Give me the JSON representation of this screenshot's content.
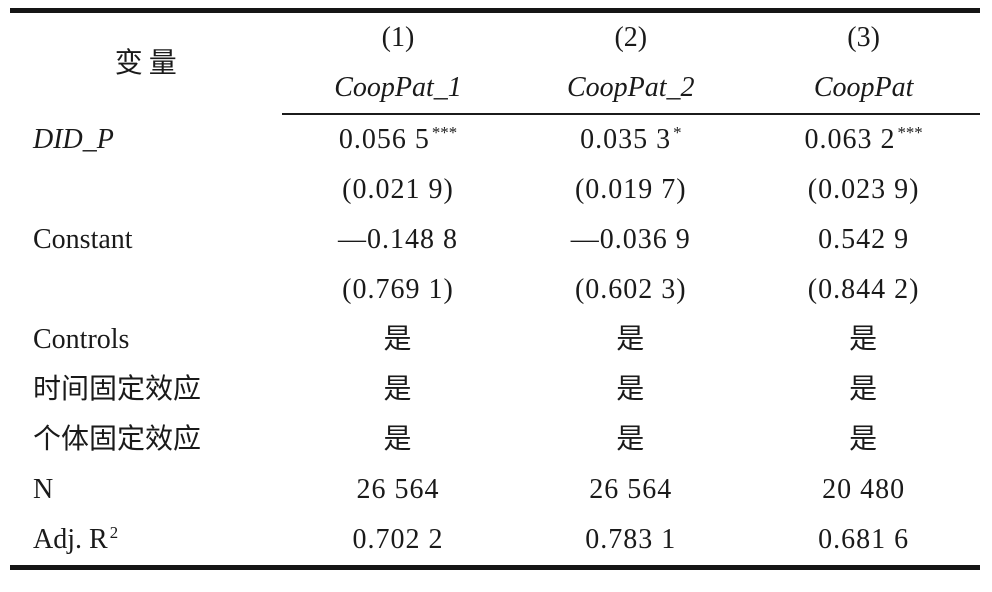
{
  "meta": {
    "background_color": "#ffffff",
    "text_color": "#1a1a1a",
    "rule_color": "#151515"
  },
  "table": {
    "header": {
      "variable_label": "变量",
      "columns": [
        {
          "number": "(1)",
          "model": "CoopPat_1"
        },
        {
          "number": "(2)",
          "model": "CoopPat_2"
        },
        {
          "number": "(3)",
          "model": "CoopPat"
        }
      ]
    },
    "rows": [
      {
        "label": "DID_P",
        "italic": true,
        "cells": [
          {
            "text": "0.056 5",
            "sup": "***"
          },
          {
            "text": "0.035 3",
            "sup": "*"
          },
          {
            "text": "0.063 2",
            "sup": "***"
          }
        ]
      },
      {
        "label": "",
        "cells": [
          {
            "text": "(0.021 9)"
          },
          {
            "text": "(0.019 7)"
          },
          {
            "text": "(0.023 9)"
          }
        ]
      },
      {
        "label": "Constant",
        "cells": [
          {
            "text": "—0.148 8"
          },
          {
            "text": "—0.036 9"
          },
          {
            "text": "0.542 9"
          }
        ]
      },
      {
        "label": "",
        "cells": [
          {
            "text": "(0.769 1)"
          },
          {
            "text": "(0.602 3)"
          },
          {
            "text": "(0.844 2)"
          }
        ]
      },
      {
        "label": "Controls",
        "cells": [
          {
            "text": "是"
          },
          {
            "text": "是"
          },
          {
            "text": "是"
          }
        ]
      },
      {
        "label": "时间固定效应",
        "cells": [
          {
            "text": "是"
          },
          {
            "text": "是"
          },
          {
            "text": "是"
          }
        ]
      },
      {
        "label": "个体固定效应",
        "cells": [
          {
            "text": "是"
          },
          {
            "text": "是"
          },
          {
            "text": "是"
          }
        ]
      },
      {
        "label": "N",
        "cells": [
          {
            "text": "26 564"
          },
          {
            "text": "26 564"
          },
          {
            "text": "20 480"
          }
        ]
      },
      {
        "label": "Adj. R",
        "label_sup": "2",
        "cells": [
          {
            "text": "0.702 2"
          },
          {
            "text": "0.783 1"
          },
          {
            "text": "0.681 6"
          }
        ]
      }
    ]
  }
}
